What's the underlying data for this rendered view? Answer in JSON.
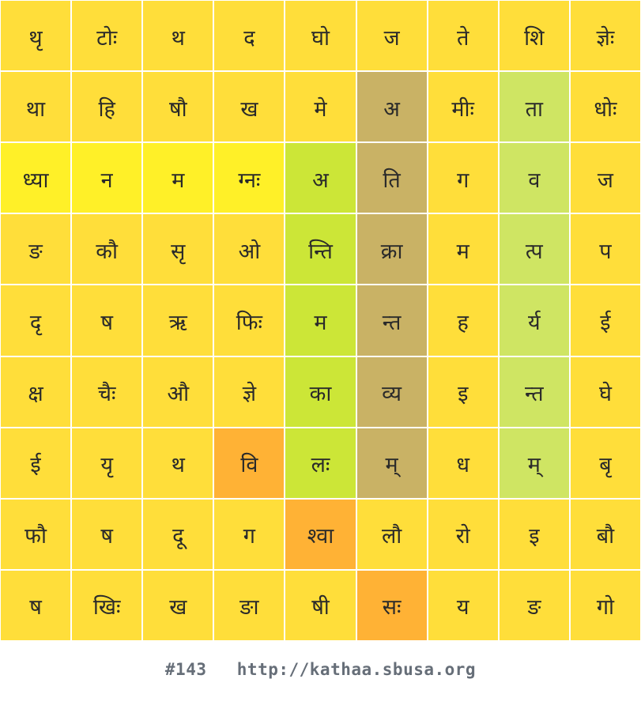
{
  "colors": {
    "Y": "#ffde3a",
    "B": "#fff028",
    "G": "#cce637",
    "K": "#c9b265",
    "L": "#cfe563",
    "O": "#ffb235"
  },
  "grid": {
    "rows": [
      [
        "थृ",
        "टोः",
        "थ",
        "द",
        "घो",
        "ज",
        "ते",
        "शि",
        "ज्ञेः"
      ],
      [
        "था",
        "हि",
        "षौ",
        "ख",
        "मे",
        "अ",
        "मीः",
        "ता",
        "धोः"
      ],
      [
        "ध्या",
        "न",
        "म",
        "ग्नः",
        "अ",
        "ति",
        "ग",
        "व",
        "ज"
      ],
      [
        "ङ",
        "कौ",
        "सृ",
        "ओ",
        "न्ति",
        "क्रा",
        "म",
        "त्प",
        "प"
      ],
      [
        "दृ",
        "ष",
        "ऋ",
        "फिः",
        "म",
        "न्त",
        "ह",
        "र्य",
        "ई"
      ],
      [
        "क्ष",
        "चैः",
        "औ",
        "ज्ञे",
        "का",
        "व्य",
        "इ",
        "न्त",
        "घे"
      ],
      [
        "ई",
        "यृ",
        "थ",
        "वि",
        "लः",
        "म्",
        "ध",
        "म्",
        "बृ"
      ],
      [
        "फौ",
        "ष",
        "दू",
        "ग",
        "श्वा",
        "लौ",
        "रो",
        "इ",
        "बौ"
      ],
      [
        "ष",
        "खिः",
        "ख",
        "ङा",
        "षी",
        "सः",
        "य",
        "ङ",
        "गो"
      ]
    ],
    "highlights": [
      [
        "Y",
        "Y",
        "Y",
        "Y",
        "Y",
        "Y",
        "Y",
        "Y",
        "Y"
      ],
      [
        "Y",
        "Y",
        "Y",
        "Y",
        "Y",
        "K",
        "Y",
        "L",
        "Y"
      ],
      [
        "B",
        "B",
        "B",
        "B",
        "G",
        "K",
        "Y",
        "L",
        "Y"
      ],
      [
        "Y",
        "Y",
        "Y",
        "Y",
        "G",
        "K",
        "Y",
        "L",
        "Y"
      ],
      [
        "Y",
        "Y",
        "Y",
        "Y",
        "G",
        "K",
        "Y",
        "L",
        "Y"
      ],
      [
        "Y",
        "Y",
        "Y",
        "Y",
        "G",
        "K",
        "Y",
        "L",
        "Y"
      ],
      [
        "Y",
        "Y",
        "Y",
        "O",
        "G",
        "K",
        "Y",
        "L",
        "Y"
      ],
      [
        "Y",
        "Y",
        "Y",
        "Y",
        "O",
        "Y",
        "Y",
        "Y",
        "Y"
      ],
      [
        "Y",
        "Y",
        "Y",
        "Y",
        "Y",
        "O",
        "Y",
        "Y",
        "Y"
      ]
    ]
  },
  "footer": {
    "puzzle_number": "#143",
    "url": "http://kathaa.sbusa.org"
  }
}
